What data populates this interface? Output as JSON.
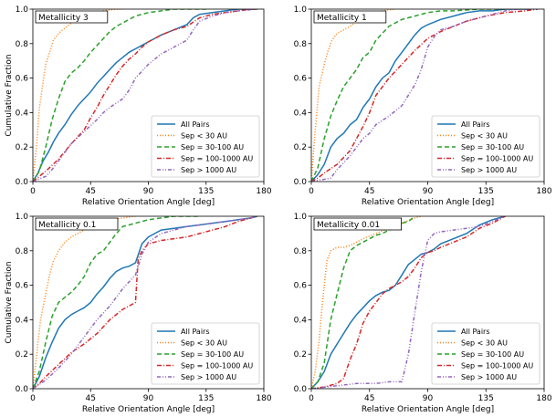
{
  "chart_data": [
    {
      "type": "line",
      "panel_label": "Metallicity 3",
      "xlabel": "Relative Orientation Angle [deg]",
      "ylabel": "Cumulative Fraction",
      "xlim": [
        0,
        180
      ],
      "ylim": [
        0,
        1.0
      ],
      "xticks": [
        "0",
        "45",
        "90",
        "135",
        "180"
      ],
      "yticks": [
        "0.0",
        "0.2",
        "0.4",
        "0.6",
        "0.8",
        "1.0"
      ],
      "legend_position": "lower-right",
      "series": [
        {
          "name": "All Pairs",
          "x": [
            0,
            4,
            8,
            12,
            16,
            20,
            25,
            30,
            35,
            40,
            45,
            50,
            55,
            60,
            65,
            70,
            75,
            80,
            85,
            90,
            95,
            100,
            110,
            120,
            125,
            130,
            140,
            150,
            160,
            175
          ],
          "y": [
            0,
            0.05,
            0.12,
            0.17,
            0.23,
            0.28,
            0.33,
            0.39,
            0.44,
            0.48,
            0.52,
            0.57,
            0.61,
            0.65,
            0.69,
            0.72,
            0.75,
            0.77,
            0.79,
            0.81,
            0.83,
            0.85,
            0.88,
            0.91,
            0.95,
            0.97,
            0.98,
            0.99,
            1.0,
            1.0
          ]
        },
        {
          "name": "Sep < 30 AU",
          "x": [
            0,
            3,
            5,
            8,
            10,
            13,
            16,
            20,
            25,
            30,
            35,
            40,
            48,
            55,
            65,
            70
          ],
          "y": [
            0,
            0.22,
            0.42,
            0.58,
            0.68,
            0.75,
            0.82,
            0.86,
            0.89,
            0.92,
            0.94,
            0.96,
            0.98,
            0.99,
            1.0,
            1.0
          ]
        },
        {
          "name": "Sep = 30-100 AU",
          "x": [
            0,
            5,
            10,
            15,
            20,
            25,
            30,
            35,
            40,
            45,
            50,
            55,
            60,
            65,
            70,
            75,
            80,
            90,
            100,
            110,
            120,
            135
          ],
          "y": [
            0,
            0.06,
            0.2,
            0.36,
            0.48,
            0.58,
            0.63,
            0.66,
            0.7,
            0.75,
            0.79,
            0.83,
            0.87,
            0.9,
            0.92,
            0.94,
            0.96,
            0.98,
            0.99,
            1.0,
            1.0,
            1.0
          ]
        },
        {
          "name": "Sep = 100-1000 AU",
          "x": [
            0,
            5,
            10,
            20,
            30,
            40,
            45,
            50,
            55,
            60,
            65,
            70,
            75,
            80,
            85,
            90,
            100,
            110,
            120,
            130,
            140,
            150,
            160,
            170,
            175
          ],
          "y": [
            0,
            0.03,
            0.06,
            0.13,
            0.22,
            0.3,
            0.37,
            0.43,
            0.5,
            0.56,
            0.62,
            0.67,
            0.71,
            0.74,
            0.78,
            0.81,
            0.85,
            0.88,
            0.9,
            0.95,
            0.97,
            0.98,
            0.99,
            1.0,
            1.0
          ]
        },
        {
          "name": "Sep > 1000 AU",
          "x": [
            0,
            10,
            15,
            20,
            25,
            30,
            40,
            50,
            55,
            60,
            70,
            75,
            80,
            90,
            100,
            110,
            120,
            125,
            130,
            140,
            150,
            160,
            175
          ],
          "y": [
            0,
            0.03,
            0.07,
            0.12,
            0.17,
            0.22,
            0.29,
            0.36,
            0.4,
            0.43,
            0.48,
            0.53,
            0.6,
            0.68,
            0.74,
            0.78,
            0.82,
            0.88,
            0.93,
            0.96,
            0.98,
            0.99,
            1.0
          ]
        }
      ]
    },
    {
      "type": "line",
      "panel_label": "Metallicity 1",
      "xlabel": "Relative Orientation Angle [deg]",
      "ylabel": "",
      "xlim": [
        0,
        180
      ],
      "ylim": [
        0,
        1.0
      ],
      "xticks": [
        "0",
        "45",
        "90",
        "135",
        "180"
      ],
      "yticks": [
        "0.0",
        "0.2",
        "0.4",
        "0.6",
        "0.8",
        "1.0"
      ],
      "legend_position": "lower-right",
      "series": [
        {
          "name": "All Pairs",
          "x": [
            0,
            5,
            10,
            15,
            20,
            25,
            30,
            35,
            40,
            45,
            50,
            55,
            60,
            65,
            70,
            75,
            80,
            85,
            90,
            100,
            110,
            120,
            130,
            140,
            150,
            160,
            170
          ],
          "y": [
            0,
            0.04,
            0.1,
            0.2,
            0.25,
            0.28,
            0.33,
            0.36,
            0.43,
            0.48,
            0.55,
            0.6,
            0.63,
            0.7,
            0.75,
            0.8,
            0.85,
            0.89,
            0.91,
            0.94,
            0.96,
            0.98,
            0.99,
            0.99,
            1.0,
            1.0,
            1.0
          ]
        },
        {
          "name": "Sep < 30 AU",
          "x": [
            0,
            3,
            6,
            10,
            13,
            16,
            20,
            25,
            30,
            35,
            40,
            45,
            55,
            65
          ],
          "y": [
            0,
            0.3,
            0.55,
            0.68,
            0.76,
            0.82,
            0.86,
            0.88,
            0.9,
            0.93,
            0.95,
            0.97,
            0.99,
            1.0
          ]
        },
        {
          "name": "Sep = 30-100 AU",
          "x": [
            0,
            5,
            10,
            15,
            20,
            25,
            30,
            35,
            40,
            45,
            50,
            60,
            70,
            80,
            90,
            100,
            110,
            130,
            150
          ],
          "y": [
            0,
            0.08,
            0.25,
            0.38,
            0.47,
            0.55,
            0.6,
            0.65,
            0.72,
            0.75,
            0.82,
            0.9,
            0.94,
            0.96,
            0.98,
            0.99,
            0.99,
            1.0,
            1.0
          ]
        },
        {
          "name": "Sep = 100-1000 AU",
          "x": [
            0,
            5,
            10,
            20,
            30,
            40,
            45,
            50,
            60,
            70,
            80,
            90,
            100,
            110,
            120,
            135,
            150,
            165,
            175
          ],
          "y": [
            0,
            0.02,
            0.05,
            0.1,
            0.18,
            0.32,
            0.4,
            0.5,
            0.6,
            0.68,
            0.76,
            0.83,
            0.87,
            0.9,
            0.93,
            0.96,
            0.98,
            0.99,
            1.0
          ]
        },
        {
          "name": "Sep > 1000 AU",
          "x": [
            0,
            15,
            20,
            30,
            40,
            45,
            50,
            60,
            70,
            80,
            85,
            90,
            95,
            100,
            110,
            120,
            130,
            140,
            150,
            160,
            175
          ],
          "y": [
            0,
            0.02,
            0.07,
            0.15,
            0.25,
            0.28,
            0.33,
            0.38,
            0.44,
            0.56,
            0.65,
            0.78,
            0.84,
            0.88,
            0.9,
            0.93,
            0.95,
            0.97,
            0.99,
            1.0,
            1.0
          ]
        }
      ]
    },
    {
      "type": "line",
      "panel_label": "Metallicity 0.1",
      "xlabel": "Relative Orientation Angle [deg]",
      "ylabel": "Cumulative Fraction",
      "xlim": [
        0,
        180
      ],
      "ylim": [
        0,
        1.0
      ],
      "xticks": [
        "0",
        "45",
        "90",
        "135",
        "180"
      ],
      "yticks": [
        "0.0",
        "0.2",
        "0.4",
        "0.6",
        "0.8",
        "1.0"
      ],
      "legend_position": "lower-right",
      "series": [
        {
          "name": "All Pairs",
          "x": [
            0,
            5,
            10,
            15,
            20,
            25,
            30,
            35,
            40,
            45,
            50,
            55,
            60,
            65,
            70,
            75,
            80,
            85,
            90,
            95,
            100,
            110,
            120,
            130,
            140,
            150,
            160,
            170,
            175
          ],
          "y": [
            0,
            0.07,
            0.18,
            0.27,
            0.35,
            0.4,
            0.43,
            0.45,
            0.47,
            0.5,
            0.55,
            0.59,
            0.64,
            0.68,
            0.7,
            0.71,
            0.73,
            0.84,
            0.88,
            0.9,
            0.92,
            0.93,
            0.94,
            0.95,
            0.96,
            0.97,
            0.98,
            0.99,
            1.0
          ]
        },
        {
          "name": "Sep < 30 AU",
          "x": [
            0,
            3,
            6,
            10,
            13,
            16,
            20,
            25,
            30,
            35,
            40,
            45,
            50,
            55,
            60,
            70,
            80
          ],
          "y": [
            0,
            0.2,
            0.4,
            0.55,
            0.66,
            0.74,
            0.8,
            0.85,
            0.88,
            0.9,
            0.92,
            0.94,
            0.96,
            0.97,
            0.98,
            0.99,
            1.0
          ]
        },
        {
          "name": "Sep = 30-100 AU",
          "x": [
            0,
            5,
            10,
            15,
            20,
            25,
            30,
            35,
            40,
            45,
            50,
            55,
            60,
            65,
            70,
            80,
            90,
            100,
            110,
            120,
            130
          ],
          "y": [
            0,
            0.1,
            0.27,
            0.42,
            0.5,
            0.53,
            0.56,
            0.6,
            0.65,
            0.73,
            0.78,
            0.8,
            0.85,
            0.9,
            0.94,
            0.96,
            0.98,
            0.99,
            1.0,
            1.0,
            1.0
          ]
        },
        {
          "name": "Sep = 100-1000 AU",
          "x": [
            0,
            5,
            10,
            20,
            30,
            40,
            50,
            55,
            60,
            70,
            80,
            82,
            85,
            90,
            100,
            110,
            120,
            130,
            140,
            150,
            160,
            175
          ],
          "y": [
            0,
            0.03,
            0.07,
            0.14,
            0.21,
            0.26,
            0.32,
            0.36,
            0.4,
            0.46,
            0.5,
            0.75,
            0.8,
            0.84,
            0.86,
            0.87,
            0.88,
            0.9,
            0.92,
            0.94,
            0.97,
            1.0
          ]
        },
        {
          "name": "Sep > 1000 AU",
          "x": [
            0,
            10,
            20,
            30,
            40,
            50,
            60,
            70,
            80,
            85,
            90,
            100,
            110,
            120,
            130,
            140,
            150,
            160,
            170,
            175
          ],
          "y": [
            0,
            0.05,
            0.12,
            0.2,
            0.3,
            0.4,
            0.48,
            0.58,
            0.66,
            0.78,
            0.85,
            0.9,
            0.92,
            0.94,
            0.95,
            0.96,
            0.97,
            0.98,
            0.99,
            1.0
          ]
        }
      ]
    },
    {
      "type": "line",
      "panel_label": "Metallicity 0.01",
      "xlabel": "Relative Orientation Angle [deg]",
      "ylabel": "",
      "xlim": [
        0,
        180
      ],
      "ylim": [
        0,
        1.0
      ],
      "xticks": [
        "0",
        "45",
        "90",
        "135",
        "180"
      ],
      "yticks": [
        "0.0",
        "0.2",
        "0.4",
        "0.6",
        "0.8",
        "1.0"
      ],
      "legend_position": "lower-right",
      "series": [
        {
          "name": "All Pairs",
          "x": [
            0,
            5,
            10,
            15,
            20,
            25,
            30,
            35,
            40,
            45,
            50,
            55,
            60,
            65,
            70,
            75,
            80,
            85,
            90,
            95,
            100,
            110,
            120,
            130,
            140,
            150
          ],
          "y": [
            0,
            0.04,
            0.1,
            0.2,
            0.26,
            0.32,
            0.38,
            0.43,
            0.47,
            0.51,
            0.54,
            0.56,
            0.57,
            0.6,
            0.66,
            0.72,
            0.75,
            0.78,
            0.79,
            0.81,
            0.84,
            0.87,
            0.9,
            0.95,
            0.98,
            1.0
          ]
        },
        {
          "name": "Sep < 30 AU",
          "x": [
            0,
            3,
            6,
            8,
            10,
            12,
            15,
            20,
            25,
            30,
            35,
            40,
            50,
            60,
            70,
            80,
            85
          ],
          "y": [
            0,
            0.1,
            0.28,
            0.45,
            0.6,
            0.74,
            0.8,
            0.82,
            0.82,
            0.83,
            0.85,
            0.87,
            0.9,
            0.93,
            0.96,
            0.99,
            1.0
          ]
        },
        {
          "name": "Sep = 30-100 AU",
          "x": [
            0,
            5,
            10,
            15,
            20,
            25,
            30,
            35,
            40,
            45,
            50,
            55,
            60,
            65,
            70,
            75,
            80
          ],
          "y": [
            0,
            0.04,
            0.15,
            0.4,
            0.55,
            0.7,
            0.8,
            0.83,
            0.85,
            0.87,
            0.89,
            0.9,
            0.92,
            0.93,
            0.96,
            0.97,
            1.0
          ]
        },
        {
          "name": "Sep = 100-1000 AU",
          "x": [
            0,
            10,
            20,
            25,
            30,
            35,
            40,
            45,
            50,
            55,
            60,
            65,
            70,
            75,
            80,
            85,
            90,
            95,
            100,
            110,
            120,
            130,
            140,
            150
          ],
          "y": [
            0,
            0.01,
            0.03,
            0.06,
            0.17,
            0.26,
            0.38,
            0.45,
            0.5,
            0.55,
            0.58,
            0.6,
            0.62,
            0.65,
            0.7,
            0.76,
            0.79,
            0.8,
            0.82,
            0.85,
            0.88,
            0.93,
            0.96,
            1.0
          ]
        },
        {
          "name": "Sep > 1000 AU",
          "x": [
            0,
            35,
            40,
            50,
            60,
            70,
            75,
            80,
            85,
            90,
            95,
            100,
            110,
            120,
            130,
            140,
            150
          ],
          "y": [
            0,
            0.03,
            0.03,
            0.03,
            0.04,
            0.04,
            0.2,
            0.44,
            0.68,
            0.86,
            0.9,
            0.91,
            0.92,
            0.93,
            0.94,
            0.97,
            1.0
          ]
        }
      ]
    }
  ],
  "series_styles": [
    {
      "name": "All Pairs",
      "color": "#1f77b4",
      "dash": ""
    },
    {
      "name": "Sep < 30 AU",
      "color": "#ff7f0e",
      "dash": "1,2"
    },
    {
      "name": "Sep = 30-100 AU",
      "color": "#2ca02c",
      "dash": "5,3"
    },
    {
      "name": "Sep = 100-1000 AU",
      "color": "#d62728",
      "dash": "5,2,1,2"
    },
    {
      "name": "Sep > 1000 AU",
      "color": "#9467bd",
      "dash": "4,2,1,2,1,2"
    }
  ]
}
